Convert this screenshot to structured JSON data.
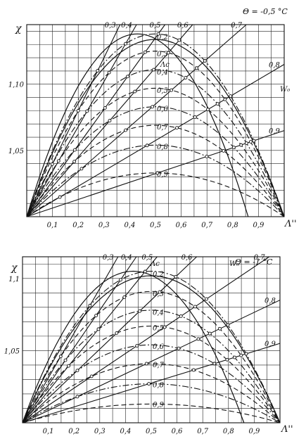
{
  "chart_data": [
    {
      "type": "line",
      "title": "Θ = -0,5 °C",
      "ylabel": "χ",
      "xlabel": "Λ''",
      "xlim": [
        0,
        1.0
      ],
      "ylim": [
        1.0,
        1.145
      ],
      "x_ticks": [
        {
          "v": 0.1,
          "t": "0,1"
        },
        {
          "v": 0.2,
          "t": "0,2"
        },
        {
          "v": 0.3,
          "t": "0,3"
        },
        {
          "v": 0.4,
          "t": "0,4"
        },
        {
          "v": 0.5,
          "t": "0,5"
        },
        {
          "v": 0.6,
          "t": "0,6"
        },
        {
          "v": 0.7,
          "t": "0,7"
        },
        {
          "v": 0.8,
          "t": "0,8"
        },
        {
          "v": 0.9,
          "t": "0,9"
        }
      ],
      "y_ticks": [
        {
          "v": 1.05,
          "t": "1,05"
        },
        {
          "v": 1.1,
          "t": "1,10"
        }
      ],
      "grid": true,
      "Lambda_prime_curves": [
        {
          "label": "0,2",
          "peak": 1.138,
          "style": "dashdot"
        },
        {
          "label": "0,3",
          "peak": 1.125,
          "style": "dashed"
        },
        {
          "label": "0,4",
          "peak": 1.111,
          "style": "dashdot"
        },
        {
          "label": "0,5",
          "peak": 1.097,
          "style": "dashed"
        },
        {
          "label": "0,6",
          "peak": 1.083,
          "style": "dashdot"
        },
        {
          "label": "0,7",
          "peak": 1.069,
          "style": "dashed"
        },
        {
          "label": "0,8",
          "peak": 1.054,
          "style": "dashdot"
        },
        {
          "label": "0,9",
          "peak": 1.033,
          "style": "dashed"
        }
      ],
      "W0_rays": [
        {
          "label": "0,3",
          "slope": 0.4
        },
        {
          "label": "0,4",
          "slope": 0.34
        },
        {
          "label": "0,5",
          "slope": 0.27
        },
        {
          "label": "0,6",
          "slope": 0.225
        },
        {
          "label": "0,7",
          "slope": 0.17
        },
        {
          "label": "0,8",
          "slope": 0.115
        },
        {
          "label": "0,9",
          "slope": 0.065
        }
      ],
      "ray_label_lambda": "Λc",
      "ray_label_w": "W₀"
    },
    {
      "type": "line",
      "title": "Θ = -1 °C",
      "ylabel": "χ",
      "xlabel": "Λ''",
      "xlim": [
        0,
        1.0
      ],
      "ylim": [
        1.0,
        1.115
      ],
      "x_ticks": [
        {
          "v": 0.1,
          "t": "0,1"
        },
        {
          "v": 0.2,
          "t": "0,2"
        },
        {
          "v": 0.3,
          "t": "0,3"
        },
        {
          "v": 0.4,
          "t": "0,4"
        },
        {
          "v": 0.5,
          "t": "0,5"
        },
        {
          "v": 0.6,
          "t": "0,6"
        },
        {
          "v": 0.7,
          "t": "0,7"
        },
        {
          "v": 0.8,
          "t": "0,8"
        },
        {
          "v": 0.9,
          "t": "0,9"
        }
      ],
      "y_ticks": [
        {
          "v": 1.05,
          "t": "1,05"
        },
        {
          "v": 1.1,
          "t": "1,1"
        }
      ],
      "grid": true,
      "Lambda_prime_curves": [
        {
          "label": "0,2",
          "peak": 1.105,
          "style": "dashdot"
        },
        {
          "label": "0,3",
          "peak": 1.091,
          "style": "dashed"
        },
        {
          "label": "0,4",
          "peak": 1.078,
          "style": "dashdot"
        },
        {
          "label": "0,5",
          "peak": 1.067,
          "style": "dashed"
        },
        {
          "label": "0,6",
          "peak": 1.054,
          "style": "dashdot"
        },
        {
          "label": "0,7",
          "peak": 1.041,
          "style": "dashed"
        },
        {
          "label": "0,8",
          "peak": 1.027,
          "style": "dashdot"
        },
        {
          "label": "0,9",
          "peak": 1.013,
          "style": "dashed"
        }
      ],
      "W0_rays": [
        {
          "label": "0,3",
          "slope": 0.31
        },
        {
          "label": "0,4",
          "slope": 0.26
        },
        {
          "label": "0,5",
          "slope": 0.22
        },
        {
          "label": "0,6",
          "slope": 0.17
        },
        {
          "label": "0,7",
          "slope": 0.12
        },
        {
          "label": "0,8",
          "slope": 0.085
        },
        {
          "label": "0,9",
          "slope": 0.055
        }
      ],
      "ray_label_lambda": "Λc",
      "ray_label_w": "W₀"
    }
  ]
}
